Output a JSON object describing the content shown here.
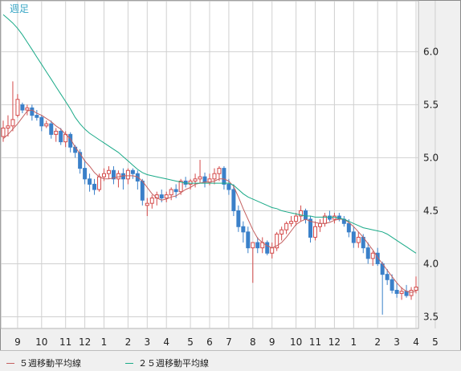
{
  "chart_data": {
    "type": "candlestick",
    "title": "週足",
    "y_ticks": [
      3.5,
      4.0,
      4.5,
      5.0,
      5.5,
      6.0
    ],
    "ylim": [
      3.39,
      6.48
    ],
    "x_tick_labels": [
      {
        "label": "9",
        "index": 3
      },
      {
        "label": "10",
        "index": 8
      },
      {
        "label": "11",
        "index": 13
      },
      {
        "label": "12",
        "index": 17
      },
      {
        "label": "1",
        "index": 21
      },
      {
        "label": "2",
        "index": 26
      },
      {
        "label": "3",
        "index": 30
      },
      {
        "label": "4",
        "index": 34
      },
      {
        "label": "5",
        "index": 39
      },
      {
        "label": "6",
        "index": 43
      },
      {
        "label": "7",
        "index": 47
      },
      {
        "label": "8",
        "index": 52
      },
      {
        "label": "9",
        "index": 56
      },
      {
        "label": "10",
        "index": 61
      },
      {
        "label": "11",
        "index": 65
      },
      {
        "label": "12",
        "index": 69
      },
      {
        "label": "1",
        "index": 73
      },
      {
        "label": "2",
        "index": 78
      },
      {
        "label": "3",
        "index": 82
      },
      {
        "label": "4",
        "index": 86
      },
      {
        "label": "5",
        "index": 90
      }
    ],
    "candles": [
      [
        5.2,
        5.35,
        5.15,
        5.28
      ],
      [
        5.28,
        5.4,
        5.2,
        5.3
      ],
      [
        5.3,
        5.72,
        5.25,
        5.36
      ],
      [
        5.4,
        5.6,
        5.38,
        5.55
      ],
      [
        5.5,
        5.52,
        5.42,
        5.45
      ],
      [
        5.45,
        5.5,
        5.4,
        5.47
      ],
      [
        5.47,
        5.5,
        5.35,
        5.4
      ],
      [
        5.4,
        5.45,
        5.35,
        5.38
      ],
      [
        5.38,
        5.4,
        5.25,
        5.3
      ],
      [
        5.3,
        5.35,
        5.28,
        5.32
      ],
      [
        5.32,
        5.35,
        5.18,
        5.22
      ],
      [
        5.22,
        5.28,
        5.15,
        5.25
      ],
      [
        5.25,
        5.28,
        5.12,
        5.15
      ],
      [
        5.15,
        5.25,
        5.1,
        5.22
      ],
      [
        5.22,
        5.24,
        5.05,
        5.1
      ],
      [
        5.1,
        5.12,
        5.0,
        5.05
      ],
      [
        5.05,
        5.08,
        4.85,
        4.9
      ],
      [
        4.9,
        4.98,
        4.75,
        4.8
      ],
      [
        4.8,
        4.85,
        4.68,
        4.75
      ],
      [
        4.75,
        4.8,
        4.65,
        4.7
      ],
      [
        4.7,
        4.85,
        4.68,
        4.82
      ],
      [
        4.82,
        4.9,
        4.78,
        4.85
      ],
      [
        4.85,
        4.92,
        4.8,
        4.88
      ],
      [
        4.88,
        4.92,
        4.75,
        4.8
      ],
      [
        4.8,
        4.88,
        4.72,
        4.85
      ],
      [
        4.85,
        4.9,
        4.7,
        4.8
      ],
      [
        4.8,
        4.9,
        4.75,
        4.88
      ],
      [
        4.88,
        4.9,
        4.8,
        4.85
      ],
      [
        4.85,
        4.88,
        4.7,
        4.78
      ],
      [
        4.78,
        4.8,
        4.55,
        4.6
      ],
      [
        4.55,
        4.62,
        4.45,
        4.57
      ],
      [
        4.57,
        4.65,
        4.52,
        4.62
      ],
      [
        4.62,
        4.68,
        4.55,
        4.65
      ],
      [
        4.65,
        4.7,
        4.58,
        4.62
      ],
      [
        4.62,
        4.68,
        4.58,
        4.65
      ],
      [
        4.65,
        4.72,
        4.6,
        4.7
      ],
      [
        4.7,
        4.75,
        4.62,
        4.68
      ],
      [
        4.68,
        4.8,
        4.65,
        4.78
      ],
      [
        4.78,
        4.82,
        4.72,
        4.75
      ],
      [
        4.75,
        4.8,
        4.7,
        4.78
      ],
      [
        4.78,
        4.85,
        4.72,
        4.8
      ],
      [
        4.8,
        4.98,
        4.76,
        4.82
      ],
      [
        4.82,
        4.86,
        4.72,
        4.77
      ],
      [
        4.77,
        4.85,
        4.74,
        4.8
      ],
      [
        4.8,
        4.9,
        4.75,
        4.85
      ],
      [
        4.85,
        4.92,
        4.78,
        4.9
      ],
      [
        4.9,
        4.92,
        4.7,
        4.75
      ],
      [
        4.75,
        4.8,
        4.65,
        4.7
      ],
      [
        4.7,
        4.75,
        4.45,
        4.5
      ],
      [
        4.5,
        4.55,
        4.3,
        4.35
      ],
      [
        4.35,
        4.4,
        4.2,
        4.3
      ],
      [
        4.3,
        4.35,
        4.1,
        4.15
      ],
      [
        4.15,
        4.2,
        3.82,
        4.2
      ],
      [
        4.2,
        4.25,
        4.1,
        4.15
      ],
      [
        4.15,
        4.25,
        4.1,
        4.2
      ],
      [
        4.2,
        4.22,
        4.08,
        4.1
      ],
      [
        4.1,
        4.2,
        4.05,
        4.15
      ],
      [
        4.15,
        4.3,
        4.12,
        4.28
      ],
      [
        4.28,
        4.35,
        4.22,
        4.32
      ],
      [
        4.32,
        4.4,
        4.28,
        4.38
      ],
      [
        4.38,
        4.45,
        4.35,
        4.4
      ],
      [
        4.4,
        4.48,
        4.36,
        4.45
      ],
      [
        4.45,
        4.55,
        4.4,
        4.5
      ],
      [
        4.5,
        4.52,
        4.38,
        4.42
      ],
      [
        4.42,
        4.45,
        4.2,
        4.25
      ],
      [
        4.25,
        4.4,
        4.22,
        4.35
      ],
      [
        4.35,
        4.42,
        4.3,
        4.38
      ],
      [
        4.38,
        4.48,
        4.35,
        4.45
      ],
      [
        4.45,
        4.5,
        4.4,
        4.42
      ],
      [
        4.42,
        4.48,
        4.38,
        4.45
      ],
      [
        4.45,
        4.48,
        4.4,
        4.42
      ],
      [
        4.42,
        4.45,
        4.35,
        4.38
      ],
      [
        4.38,
        4.42,
        4.25,
        4.3
      ],
      [
        4.3,
        4.35,
        4.15,
        4.2
      ],
      [
        4.2,
        4.3,
        4.15,
        4.25
      ],
      [
        4.25,
        4.28,
        4.1,
        4.15
      ],
      [
        4.15,
        4.2,
        4.0,
        4.05
      ],
      [
        4.05,
        4.12,
        3.98,
        4.1
      ],
      [
        4.1,
        4.15,
        3.98,
        4.0
      ],
      [
        4.0,
        4.02,
        3.52,
        3.9
      ],
      [
        3.9,
        3.95,
        3.8,
        3.85
      ],
      [
        3.85,
        3.9,
        3.72,
        3.75
      ],
      [
        3.75,
        3.82,
        3.68,
        3.72
      ],
      [
        3.72,
        3.78,
        3.66,
        3.74
      ],
      [
        3.74,
        3.8,
        3.68,
        3.7
      ],
      [
        3.7,
        3.78,
        3.66,
        3.75
      ],
      [
        3.75,
        3.88,
        3.72,
        3.78
      ]
    ],
    "series": [
      {
        "name": "５週移動平均線",
        "color": "#c46060",
        "values": [
          5.18,
          5.22,
          5.27,
          5.32,
          5.38,
          5.44,
          5.45,
          5.42,
          5.4,
          5.37,
          5.34,
          5.3,
          5.27,
          5.22,
          5.18,
          5.1,
          5.04,
          4.97,
          4.92,
          4.86,
          4.82,
          4.8,
          4.8,
          4.81,
          4.82,
          4.83,
          4.83,
          4.83,
          4.82,
          4.78,
          4.72,
          4.66,
          4.62,
          4.6,
          4.61,
          4.63,
          4.64,
          4.67,
          4.7,
          4.72,
          4.75,
          4.76,
          4.77,
          4.77,
          4.78,
          4.8,
          4.8,
          4.78,
          4.73,
          4.63,
          4.52,
          4.42,
          4.32,
          4.24,
          4.2,
          4.17,
          4.15,
          4.17,
          4.2,
          4.25,
          4.31,
          4.37,
          4.4,
          4.42,
          4.4,
          4.39,
          4.38,
          4.38,
          4.39,
          4.41,
          4.42,
          4.42,
          4.39,
          4.35,
          4.3,
          4.25,
          4.19,
          4.13,
          4.06,
          4.0,
          3.94,
          3.88,
          3.82,
          3.77,
          3.74,
          3.73,
          3.74
        ]
      },
      {
        "name": "２５週移動平均線",
        "color": "#1aaa88",
        "values": [
          6.35,
          6.31,
          6.27,
          6.22,
          6.16,
          6.09,
          6.02,
          5.95,
          5.88,
          5.81,
          5.74,
          5.67,
          5.6,
          5.53,
          5.46,
          5.38,
          5.32,
          5.27,
          5.23,
          5.2,
          5.17,
          5.14,
          5.11,
          5.08,
          5.05,
          5.01,
          4.97,
          4.93,
          4.89,
          4.86,
          4.84,
          4.83,
          4.82,
          4.81,
          4.8,
          4.79,
          4.78,
          4.77,
          4.76,
          4.76,
          4.76,
          4.76,
          4.76,
          4.76,
          4.76,
          4.76,
          4.76,
          4.76,
          4.74,
          4.7,
          4.66,
          4.63,
          4.61,
          4.59,
          4.57,
          4.55,
          4.53,
          4.52,
          4.5,
          4.49,
          4.48,
          4.47,
          4.46,
          4.45,
          4.45,
          4.44,
          4.44,
          4.44,
          4.44,
          4.44,
          4.43,
          4.42,
          4.4,
          4.38,
          4.36,
          4.34,
          4.33,
          4.32,
          4.31,
          4.3,
          4.28,
          4.25,
          4.22,
          4.19,
          4.16,
          4.13,
          4.1
        ]
      }
    ]
  }
}
